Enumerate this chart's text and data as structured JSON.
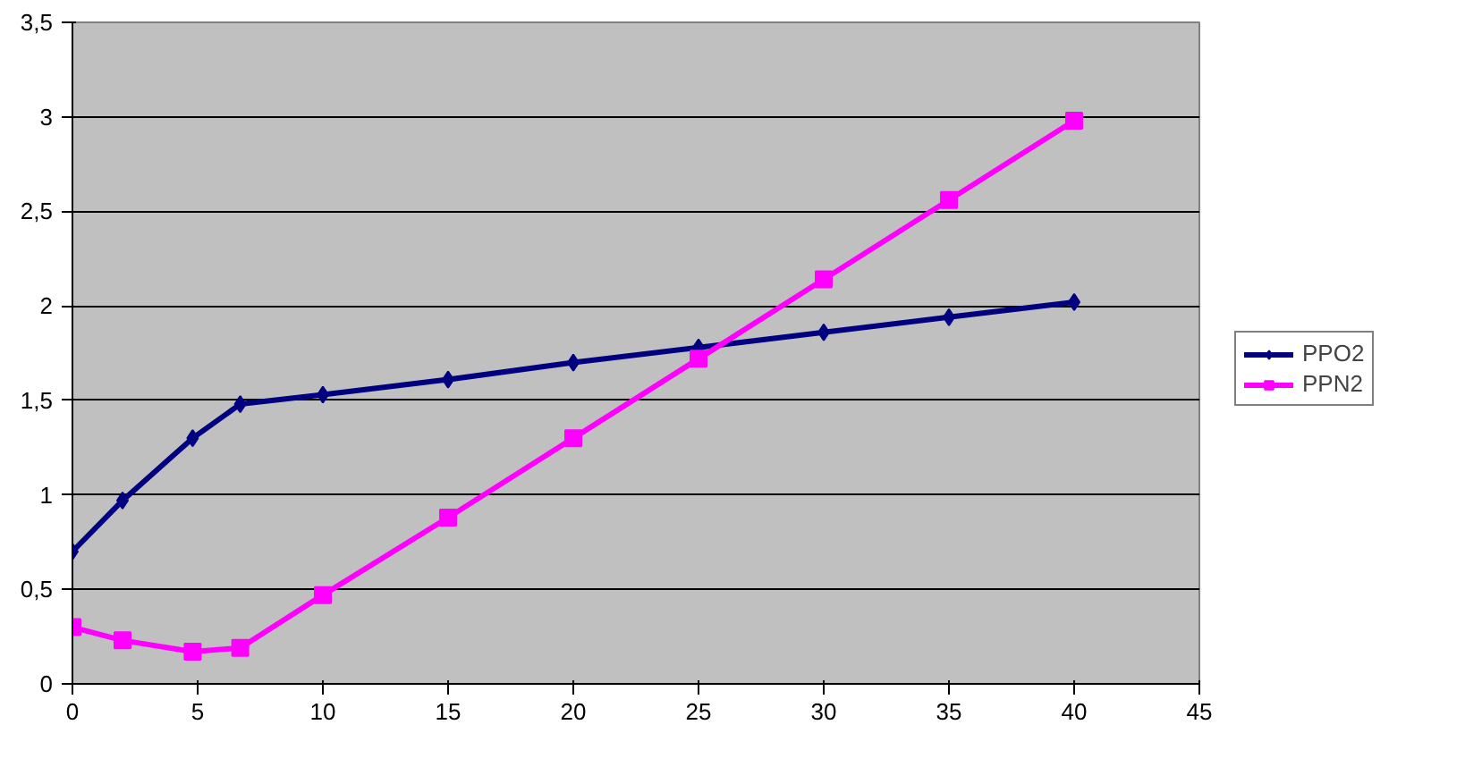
{
  "chart_data": {
    "type": "line",
    "x": [
      0,
      2,
      4.8,
      6.7,
      10,
      15,
      20,
      25,
      30,
      35,
      40
    ],
    "series": [
      {
        "name": "PPO2",
        "color": "#000080",
        "marker": "diamond",
        "values": [
          0.7,
          0.97,
          1.3,
          1.48,
          1.53,
          1.61,
          1.7,
          1.78,
          1.86,
          1.94,
          2.02
        ]
      },
      {
        "name": "PPN2",
        "color": "#ff00ff",
        "marker": "square",
        "values": [
          0.3,
          0.23,
          0.17,
          0.19,
          0.47,
          0.88,
          1.3,
          1.72,
          2.14,
          2.56,
          2.98
        ]
      }
    ],
    "xlim": [
      0,
      45
    ],
    "xticks": [
      0,
      5,
      10,
      15,
      20,
      25,
      30,
      35,
      40,
      45
    ],
    "ylim": [
      0,
      3.5
    ],
    "yticks": [
      0,
      {
        "value": 0.5,
        "label": "0,5"
      },
      1,
      {
        "value": 1.5,
        "label": "1,5"
      },
      2,
      {
        "value": 2.5,
        "label": "2,5"
      },
      3,
      {
        "value": 3.5,
        "label": "3,5"
      }
    ],
    "grid": "y",
    "legend": "right",
    "line_style": "solid"
  }
}
